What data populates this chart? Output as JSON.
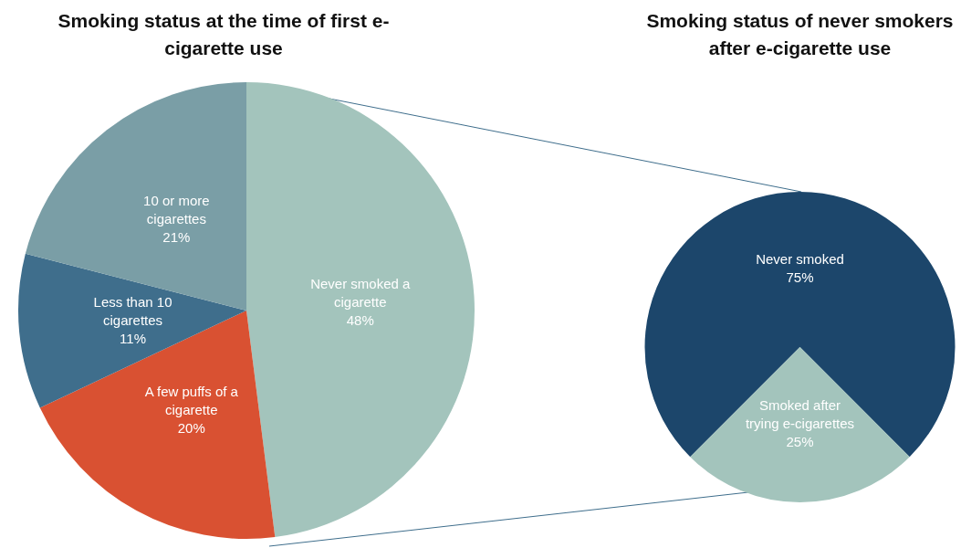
{
  "chart_data": [
    {
      "type": "pie",
      "title": "Smoking status at the time of first e-cigarette use",
      "categories": [
        "Never smoked a cigarette",
        "A few puffs of a cigarette",
        "Less than 10 cigarettes",
        "10 or more cigarettes"
      ],
      "values": [
        48,
        20,
        11,
        21
      ],
      "value_labels": [
        "48%",
        "20%",
        "11%",
        "21%"
      ],
      "colors": [
        "#a3c4bc",
        "#d95132",
        "#3f6e8c",
        "#7a9ea6"
      ]
    },
    {
      "type": "pie",
      "title": "Smoking status of never smokers after e-cigarette use",
      "categories": [
        "Never smoked",
        "Smoked after trying e-cigarettes"
      ],
      "values": [
        75,
        25
      ],
      "value_labels": [
        "75%",
        "25%"
      ],
      "colors": [
        "#1c466b",
        "#a3c4bc"
      ]
    }
  ]
}
